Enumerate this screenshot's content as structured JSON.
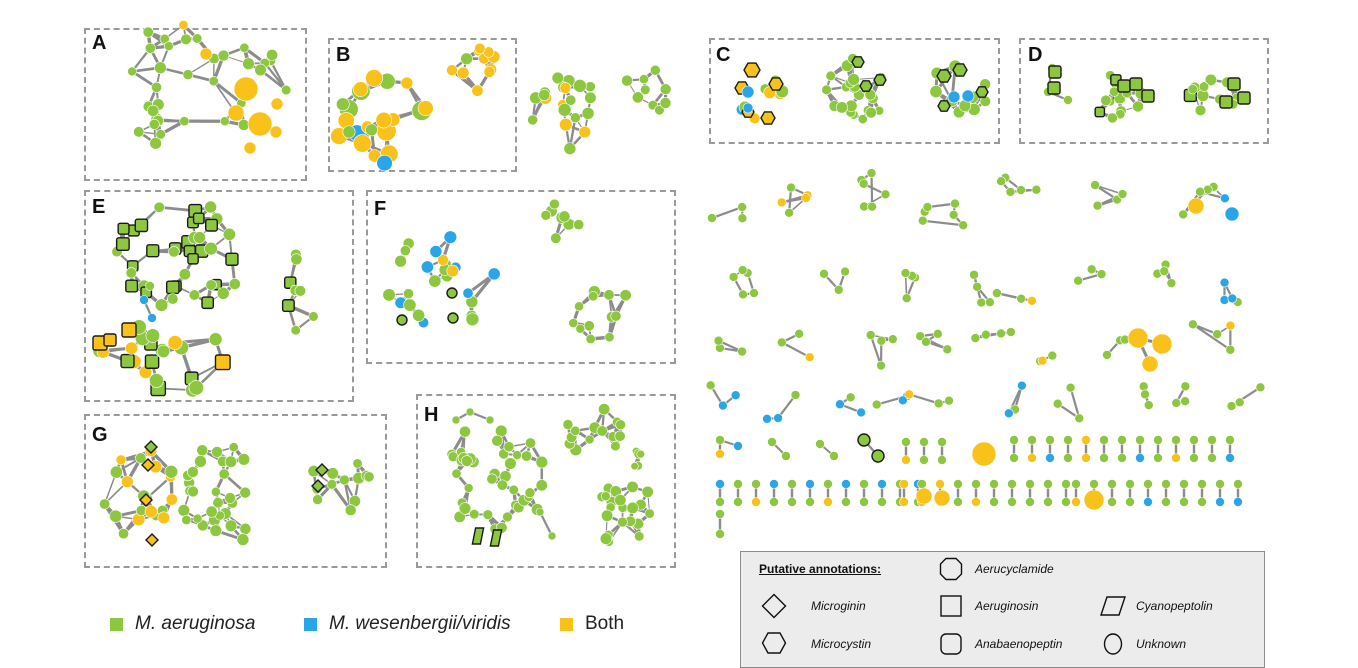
{
  "panels": {
    "a": "A",
    "b": "B",
    "c": "C",
    "d": "D",
    "e": "E",
    "f": "F",
    "g": "G",
    "h": "H"
  },
  "colors": {
    "m_aeruginosa": "#8dc63f",
    "m_wesenbergii": "#2aa6e8",
    "both": "#f9c21a",
    "edge": "#8c8c8c",
    "node_stroke": "#4a6b22"
  },
  "species_legend": {
    "m_aeruginosa": "M. aeruginosa",
    "m_wesenbergii": "M. wesenbergii/viridis",
    "both": "Both"
  },
  "annotations": {
    "title": "Putative annotations:",
    "aerucyclamide": "Aerucyclamide",
    "microginin": "Microginin",
    "aeruginosin": "Aeruginosin",
    "cyanopeptolin": "Cyanopeptolin",
    "microcystin": "Microcystin",
    "anabaenopeptin": "Anabaenopeptin",
    "unknown": "Unknown"
  },
  "shape_icons": {
    "aerucyclamide": "octagon-icon",
    "microginin": "diamond-icon",
    "aeruginosin": "square-icon",
    "cyanopeptolin": "parallelogram-icon",
    "microcystin": "hexagon-icon",
    "anabaenopeptin": "rounded-square-icon",
    "unknown": "circle-icon"
  }
}
